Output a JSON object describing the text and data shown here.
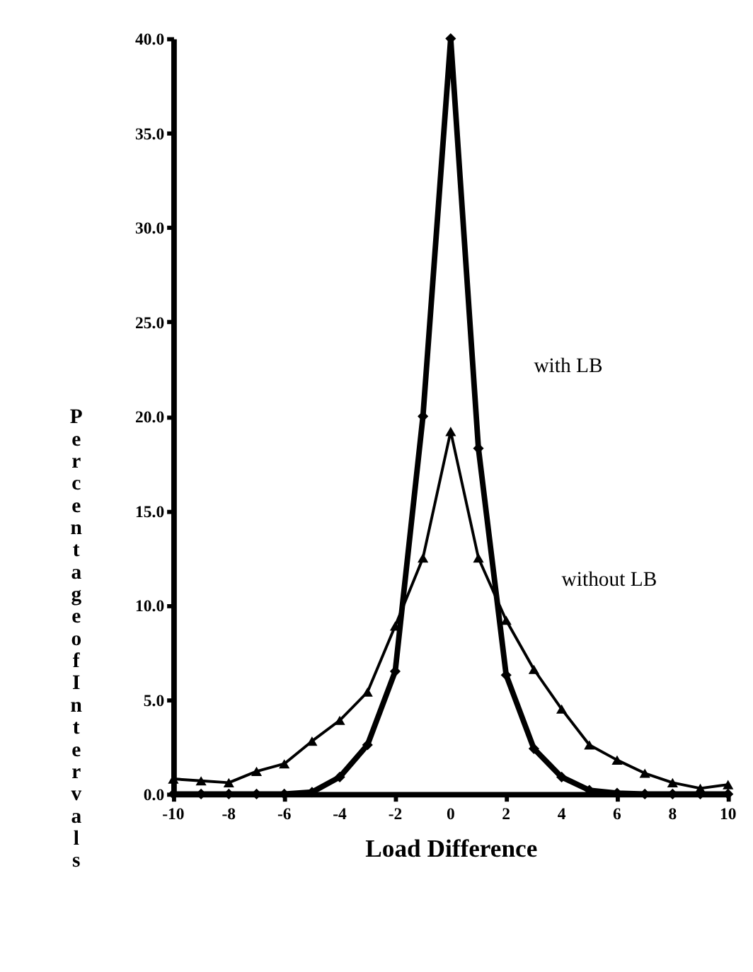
{
  "chart_data": {
    "type": "line",
    "xlabel": "Load Difference",
    "ylabel": "Percentage of Intervals",
    "x": [
      -10,
      -9,
      -8,
      -7,
      -6,
      -5,
      -4,
      -3,
      -2,
      -1,
      0,
      1,
      2,
      3,
      4,
      5,
      6,
      7,
      8,
      9,
      10
    ],
    "xlim": [
      -10,
      10
    ],
    "xticks": [
      -10,
      -8,
      -6,
      -4,
      -2,
      0,
      2,
      4,
      6,
      8,
      10
    ],
    "ylim": [
      0,
      40
    ],
    "yticks": [
      {
        "value": 0,
        "label": "0.0"
      },
      {
        "value": 5,
        "label": "5.0"
      },
      {
        "value": 10,
        "label": "10.0"
      },
      {
        "value": 15,
        "label": "15.0"
      },
      {
        "value": 20,
        "label": "20.0"
      },
      {
        "value": 25,
        "label": "25.0"
      },
      {
        "value": 30,
        "label": "30.0"
      },
      {
        "value": 35,
        "label": "35.0"
      },
      {
        "value": 40,
        "label": "40.0"
      }
    ],
    "grid": false,
    "legend": false,
    "line_style": "solid",
    "series": [
      {
        "name": "with LB",
        "color": "#000000",
        "marker": "diamond",
        "values": [
          0,
          0,
          0,
          0,
          0,
          0.1,
          0.9,
          2.6,
          6.5,
          20,
          40,
          18.3,
          6.3,
          2.4,
          0.9,
          0.2,
          0.05,
          0,
          0,
          0,
          0
        ]
      },
      {
        "name": "without LB",
        "color": "#000000",
        "marker": "triangle",
        "values": [
          0.8,
          0.7,
          0.6,
          1.2,
          1.6,
          2.8,
          3.9,
          5.4,
          8.9,
          12.5,
          19.2,
          12.5,
          9.2,
          6.6,
          4.5,
          2.6,
          1.8,
          1.1,
          0.6,
          0.3,
          0.5
        ]
      }
    ]
  }
}
